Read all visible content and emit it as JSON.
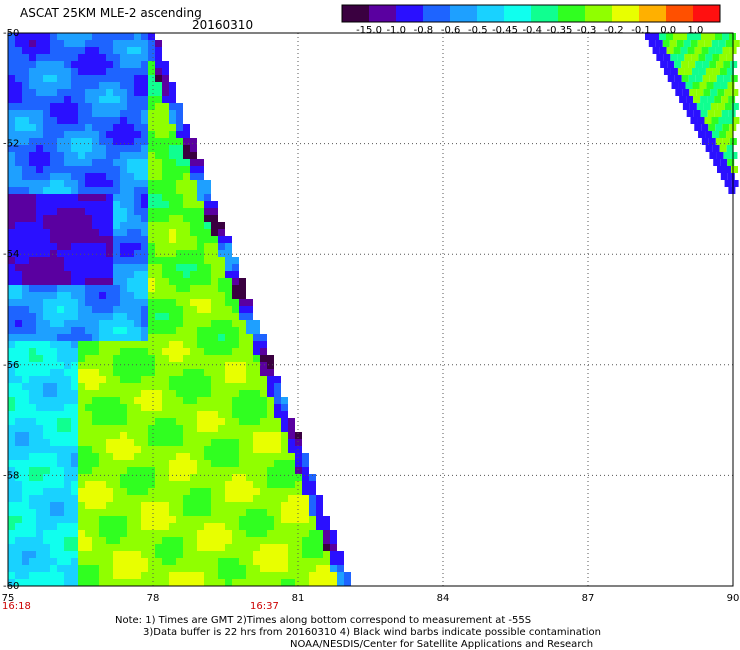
{
  "header": {
    "title": "ASCAT 25KM MLE-2 ascending",
    "date": "20160310"
  },
  "colorbar": {
    "labels": [
      "-15.0",
      "-1.0",
      "-0.8",
      "-0.6",
      "-0.5",
      "-0.45",
      "-0.4",
      "-0.35",
      "-0.3",
      "-0.2",
      "-0.1",
      "0.0",
      "1.0"
    ],
    "colors": [
      "#3a0040",
      "#5a00a0",
      "#2a10ff",
      "#1e64ff",
      "#1ea0ff",
      "#19d2ff",
      "#10ffee",
      "#10ff90",
      "#30ff20",
      "#90ff00",
      "#e8ff00",
      "#ffb000",
      "#ff5000",
      "#ff1010"
    ]
  },
  "axes": {
    "x_ticks": [
      "75",
      "78",
      "81",
      "84",
      "87",
      "90"
    ],
    "y_ticks": [
      "-50",
      "-52",
      "-54",
      "-56",
      "-58",
      "-60"
    ],
    "x_range": [
      75,
      90
    ],
    "y_range": [
      -50,
      -60
    ],
    "grid": true
  },
  "times": {
    "start": "16:18",
    "mid": "16:37"
  },
  "notes": {
    "line1": "Note: 1) Times are GMT 2)Times along bottom correspond to measurement at -55S",
    "line2": "3)Data buffer is 22 hrs from 20160310 4) Black wind barbs indicate possible contamination",
    "line3": "NOAA/NESDIS/Center for Satellite Applications and Research"
  }
}
